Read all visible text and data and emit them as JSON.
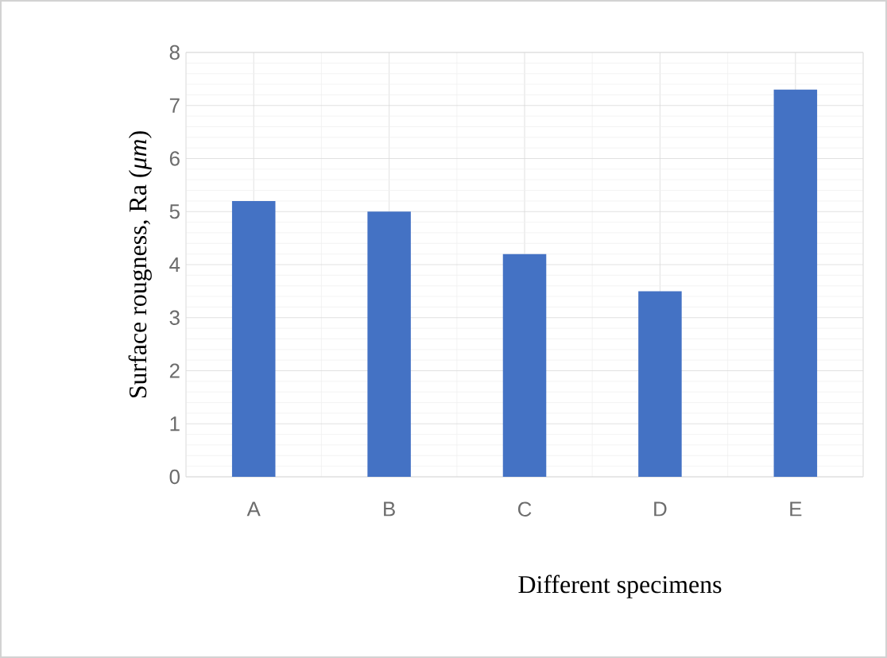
{
  "chart_data": {
    "type": "bar",
    "xlabel": "Different specimens",
    "ylabel": "Surface rougness, Ra (*μm*)",
    "categories": [
      "A",
      "B",
      "C",
      "D",
      "E"
    ],
    "values": [
      5.2,
      5.0,
      4.2,
      3.5,
      7.3
    ],
    "color": "#4472c4",
    "ylim": [
      0,
      8
    ],
    "yticks": [
      0,
      1,
      2,
      3,
      4,
      5,
      6,
      7,
      8
    ],
    "grid": true
  }
}
